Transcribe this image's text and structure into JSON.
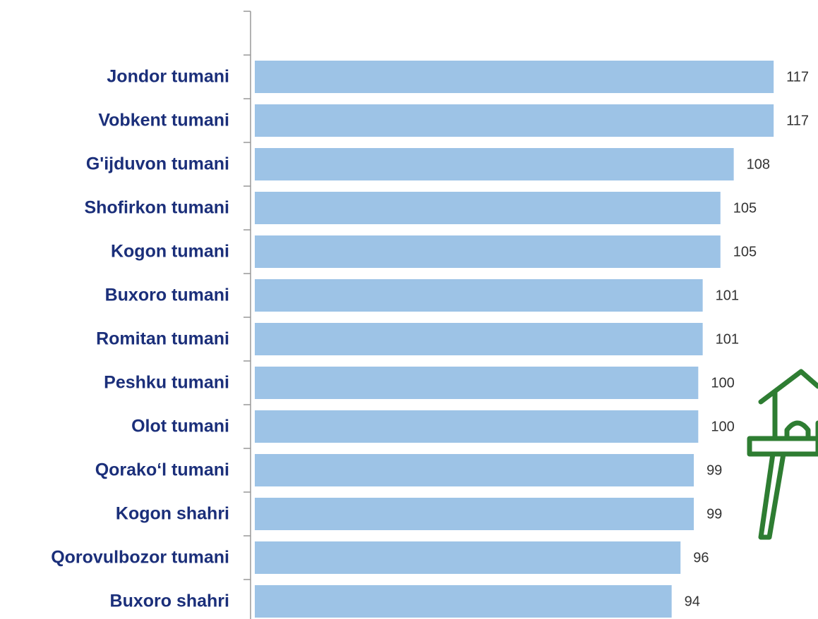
{
  "chart_data": {
    "type": "barh",
    "categories": [
      "Jondor tumani",
      "Vobkent tumani",
      "G'ijduvon tumani",
      "Shofirkon tumani",
      "Kogon tumani",
      "Buxoro tumani",
      "Romitan tumani",
      "Peshku tumani",
      "Olot tumani",
      "Qorako‘l tumani",
      "Kogon shahri",
      "Qorovulbozor tumani",
      "Buxoro shahri"
    ],
    "values": [
      117,
      117,
      108,
      105,
      105,
      101,
      101,
      100,
      100,
      99,
      99,
      96,
      94
    ],
    "color": "#9dc3e6",
    "xlim": [
      0,
      127
    ]
  }
}
